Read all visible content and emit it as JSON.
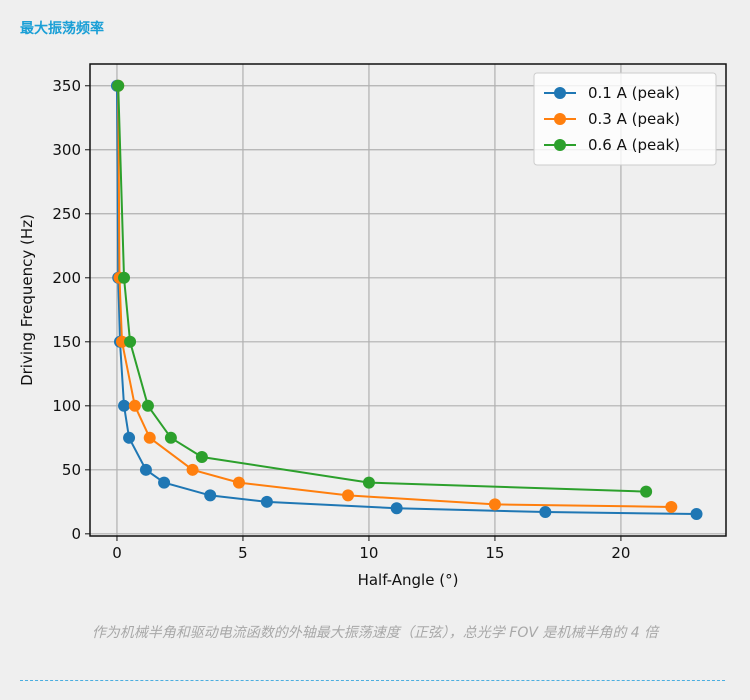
{
  "header": {
    "title": "最大振荡频率"
  },
  "caption": "作为机械半角和驱动电流函数的外轴最大振荡速度（正弦），总光学 FOV 是机械半角的 4 倍",
  "chart_data": {
    "type": "line",
    "x_label": "Half-Angle (°)",
    "y_label": "Driving Frequency (Hz)",
    "xlim": [
      -1.07,
      24.17
    ],
    "ylim": [
      -1.7,
      367
    ],
    "xticks": [
      0,
      5,
      10,
      15,
      20
    ],
    "yticks": [
      0,
      50,
      100,
      150,
      200,
      250,
      300,
      350
    ],
    "grid": true,
    "legend": "upper right",
    "series": [
      {
        "name": "0.1 A (peak)",
        "color": "#1f77b4",
        "x": [
          0,
          0.05,
          0.12,
          0.28,
          0.48,
          1.15,
          1.87,
          3.7,
          5.95,
          11.1,
          17,
          23
        ],
        "values": [
          350,
          200,
          150,
          100,
          75,
          50,
          40,
          30,
          25,
          20,
          17,
          15.5
        ]
      },
      {
        "name": "0.3 A (peak)",
        "color": "#ff7f0e",
        "x": [
          0.05,
          0.1,
          0.2,
          0.71,
          1.3,
          3,
          4.84,
          9.17,
          15,
          22
        ],
        "values": [
          350,
          200,
          150,
          100,
          75,
          50,
          40,
          30,
          23,
          21
        ]
      },
      {
        "name": "0.6 A (peak)",
        "color": "#2ca02c",
        "x": [
          0.05,
          0.28,
          0.52,
          1.23,
          2.14,
          3.37,
          10,
          21
        ],
        "values": [
          350,
          200,
          150,
          100,
          75,
          60,
          40,
          33
        ]
      }
    ]
  }
}
